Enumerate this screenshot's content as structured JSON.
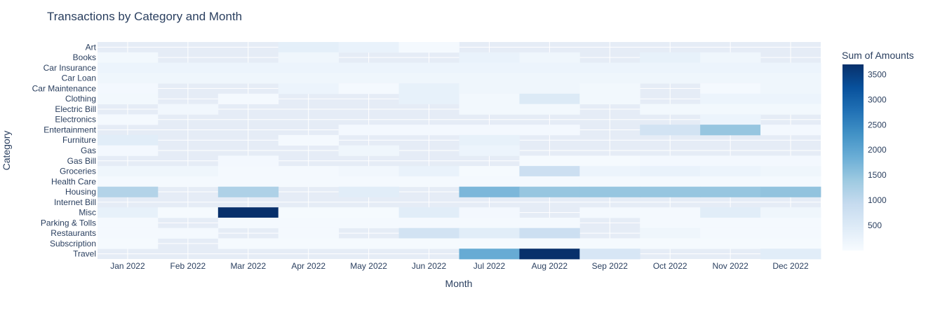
{
  "chart_data": {
    "type": "heatmap",
    "title": "Transactions by Category and Month",
    "xlabel": "Month",
    "ylabel": "Category",
    "x": [
      "Jan 2022",
      "Feb 2022",
      "Mar 2022",
      "Apr 2022",
      "May 2022",
      "Jun 2022",
      "Jul 2022",
      "Aug 2022",
      "Sep 2022",
      "Oct 2022",
      "Nov 2022",
      "Dec 2022"
    ],
    "y": [
      "Art",
      "Books",
      "Car Insurance",
      "Car Loan",
      "Car Maintenance",
      "Clothing",
      "Electric Bill",
      "Electronics",
      "Entertainment",
      "Furniture",
      "Gas",
      "Gas Bill",
      "Groceries",
      "Health Care",
      "Housing",
      "Internet Bill",
      "Misc",
      "Parking & Tolls",
      "Restaurants",
      "Subscription",
      "Travel"
    ],
    "z": [
      [
        null,
        null,
        null,
        350,
        250,
        50,
        null,
        null,
        null,
        null,
        null,
        null
      ],
      [
        100,
        null,
        null,
        150,
        null,
        null,
        250,
        150,
        null,
        300,
        150,
        null
      ],
      [
        200,
        200,
        200,
        200,
        200,
        200,
        200,
        200,
        200,
        200,
        200,
        200
      ],
      [
        150,
        150,
        150,
        150,
        150,
        150,
        150,
        150,
        150,
        150,
        150,
        150
      ],
      [
        80,
        null,
        null,
        200,
        60,
        300,
        150,
        150,
        100,
        null,
        60,
        150
      ],
      [
        100,
        null,
        50,
        null,
        null,
        300,
        100,
        500,
        100,
        null,
        200,
        200
      ],
      [
        null,
        120,
        null,
        null,
        null,
        null,
        90,
        90,
        null,
        90,
        90,
        90
      ],
      [
        50,
        null,
        null,
        null,
        null,
        null,
        null,
        null,
        null,
        null,
        200,
        null
      ],
      [
        null,
        null,
        null,
        null,
        80,
        80,
        80,
        80,
        null,
        700,
        1450,
        80
      ],
      [
        400,
        null,
        null,
        50,
        null,
        null,
        300,
        null,
        null,
        null,
        null,
        null
      ],
      [
        80,
        null,
        null,
        null,
        150,
        null,
        200,
        null,
        null,
        null,
        null,
        null
      ],
      [
        null,
        null,
        80,
        null,
        null,
        null,
        null,
        30,
        30,
        80,
        80,
        80
      ],
      [
        150,
        150,
        60,
        50,
        120,
        250,
        40,
        800,
        200,
        250,
        200,
        150
      ],
      [
        60,
        60,
        60,
        60,
        60,
        60,
        60,
        60,
        60,
        60,
        60,
        60
      ],
      [
        1150,
        null,
        1200,
        null,
        400,
        null,
        1700,
        1450,
        1450,
        1450,
        1450,
        1500
      ],
      [
        null,
        null,
        null,
        null,
        null,
        null,
        null,
        null,
        null,
        null,
        null,
        null
      ],
      [
        300,
        30,
        3700,
        40,
        40,
        400,
        80,
        null,
        60,
        60,
        400,
        150
      ],
      [
        50,
        null,
        50,
        50,
        50,
        50,
        50,
        50,
        null,
        50,
        50,
        50
      ],
      [
        60,
        60,
        null,
        60,
        null,
        700,
        400,
        800,
        null,
        150,
        60,
        60
      ],
      [
        40,
        null,
        40,
        40,
        40,
        40,
        40,
        40,
        40,
        40,
        40,
        40
      ],
      [
        null,
        null,
        null,
        null,
        null,
        null,
        1900,
        3700,
        600,
        null,
        null,
        400
      ]
    ],
    "colorscale": [
      "#f7fbff",
      "#deebf7",
      "#c6dbef",
      "#9ecae1",
      "#6baed6",
      "#4292c6",
      "#2171b5",
      "#08519c",
      "#08306b"
    ],
    "zrange": [
      0,
      3700
    ],
    "colorbar": {
      "title": "Sum of Amounts",
      "tickvals": [
        500,
        1000,
        1500,
        2000,
        2500,
        3000,
        3500
      ],
      "ticktext": [
        "500",
        "1000",
        "1500",
        "2000",
        "2500",
        "3000",
        "3500"
      ]
    },
    "plot_bg": "#e5ecf6",
    "grid": true,
    "legend_placement": "right"
  }
}
